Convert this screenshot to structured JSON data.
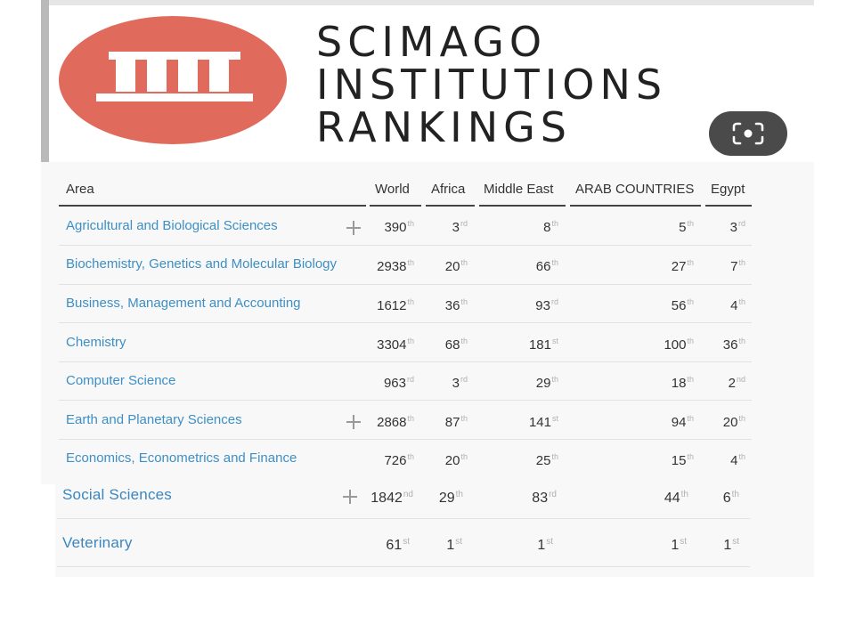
{
  "banner": {
    "title_lines": [
      "SCIMAGO",
      "INSTITUTIONS",
      "RANKINGS"
    ],
    "logo_color": "#e06a5c",
    "logo_icon": "columns-icon",
    "lens_icon": "image-search-lens-icon"
  },
  "table": {
    "columns": [
      "Area",
      "World",
      "Africa",
      "Middle East",
      "ARAB COUNTRIES",
      "Egypt"
    ],
    "rows": [
      {
        "area": "Agricultural and Biological Sciences",
        "expandable": true,
        "ranks": [
          [
            "390",
            "th"
          ],
          [
            "3",
            "rd"
          ],
          [
            "8",
            "th"
          ],
          [
            "5",
            "th"
          ],
          [
            "3",
            "rd"
          ]
        ]
      },
      {
        "area": "Biochemistry, Genetics and Molecular Biology",
        "expandable": false,
        "ranks": [
          [
            "2938",
            "th"
          ],
          [
            "20",
            "th"
          ],
          [
            "66",
            "th"
          ],
          [
            "27",
            "th"
          ],
          [
            "7",
            "th"
          ]
        ]
      },
      {
        "area": "Business, Management and Accounting",
        "expandable": false,
        "ranks": [
          [
            "1612",
            "th"
          ],
          [
            "36",
            "th"
          ],
          [
            "93",
            "rd"
          ],
          [
            "56",
            "th"
          ],
          [
            "4",
            "th"
          ]
        ]
      },
      {
        "area": "Chemistry",
        "expandable": false,
        "ranks": [
          [
            "3304",
            "th"
          ],
          [
            "68",
            "th"
          ],
          [
            "181",
            "st"
          ],
          [
            "100",
            "th"
          ],
          [
            "36",
            "th"
          ]
        ]
      },
      {
        "area": "Computer Science",
        "expandable": false,
        "ranks": [
          [
            "963",
            "rd"
          ],
          [
            "3",
            "rd"
          ],
          [
            "29",
            "th"
          ],
          [
            "18",
            "th"
          ],
          [
            "2",
            "nd"
          ]
        ]
      },
      {
        "area": "Earth and Planetary Sciences",
        "expandable": true,
        "ranks": [
          [
            "2868",
            "th"
          ],
          [
            "87",
            "th"
          ],
          [
            "141",
            "st"
          ],
          [
            "94",
            "th"
          ],
          [
            "20",
            "th"
          ]
        ]
      },
      {
        "area": "Economics, Econometrics and Finance",
        "expandable": false,
        "ranks": [
          [
            "726",
            "th"
          ],
          [
            "20",
            "th"
          ],
          [
            "25",
            "th"
          ],
          [
            "15",
            "th"
          ],
          [
            "4",
            "th"
          ]
        ]
      },
      {
        "area": "Social Sciences",
        "expandable": true,
        "ranks": [
          [
            "1842",
            "nd"
          ],
          [
            "29",
            "th"
          ],
          [
            "83",
            "rd"
          ],
          [
            "44",
            "th"
          ],
          [
            "6",
            "th"
          ]
        ]
      },
      {
        "area": "Veterinary",
        "expandable": false,
        "ranks": [
          [
            "61",
            "st"
          ],
          [
            "1",
            "st"
          ],
          [
            "1",
            "st"
          ],
          [
            "1",
            "st"
          ],
          [
            "1",
            "st"
          ]
        ]
      }
    ]
  },
  "colors": {
    "link": "#3d8fc4",
    "suffix": "#b0b0b0",
    "panel_bg": "#f9f8f9"
  }
}
